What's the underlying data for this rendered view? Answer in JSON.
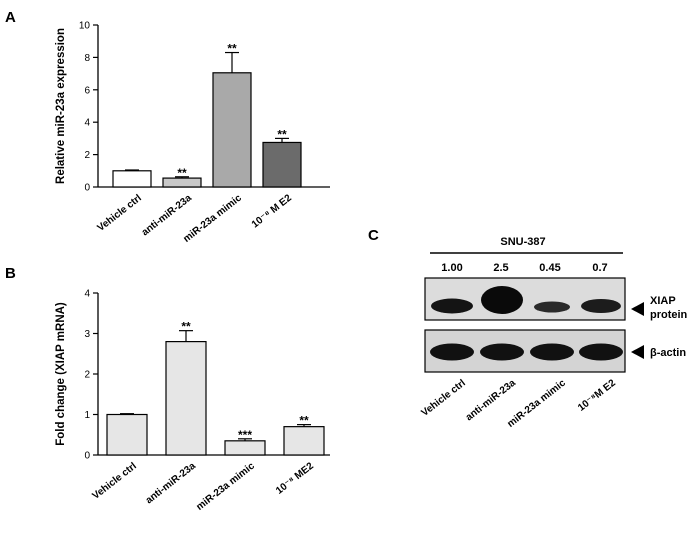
{
  "chart_data": [
    {
      "panel": "A",
      "type": "bar",
      "ylabel": "Relative miR-23a expression",
      "ylim": [
        0,
        10
      ],
      "yticks": [
        0,
        2,
        4,
        6,
        8,
        10
      ],
      "categories": [
        "Vehicle ctrl",
        "anti-miR-23a",
        "miR-23a mimic",
        "10⁻⁸ M E2"
      ],
      "values": [
        1.0,
        0.55,
        7.05,
        2.75
      ],
      "errors": [
        0.05,
        0.08,
        1.25,
        0.25
      ],
      "significance": [
        "",
        "**",
        "**",
        "**"
      ],
      "bar_colors": [
        "#ffffff",
        "#c8c8c8",
        "#a9a9a9",
        "#6b6b6b"
      ]
    },
    {
      "panel": "B",
      "type": "bar",
      "ylabel": "Fold change (XIAP mRNA)",
      "ylim": [
        0,
        4
      ],
      "yticks": [
        0,
        1,
        2,
        3,
        4
      ],
      "categories": [
        "Vehicle ctrl",
        "anti-miR-23a",
        "miR-23a mimic",
        "10⁻⁸ ME2"
      ],
      "values": [
        1.0,
        2.8,
        0.35,
        0.7
      ],
      "errors": [
        0.02,
        0.27,
        0.05,
        0.05
      ],
      "significance": [
        "",
        "**",
        "***",
        "**"
      ],
      "bar_colors": [
        "#e6e6e6",
        "#e6e6e6",
        "#e6e6e6",
        "#e6e6e6"
      ]
    }
  ],
  "blot": {
    "panel": "C",
    "title": "SNU-387",
    "values": [
      "1.00",
      "2.5",
      "0.45",
      "0.7"
    ],
    "lanes": [
      "Vehicle ctrl",
      "anti-miR-23a",
      "miR-23a mimic",
      "10⁻⁸M E2"
    ],
    "xiap_label_line1": "XIAP",
    "xiap_label_line2": "protein",
    "actin_label": "β-actin"
  }
}
